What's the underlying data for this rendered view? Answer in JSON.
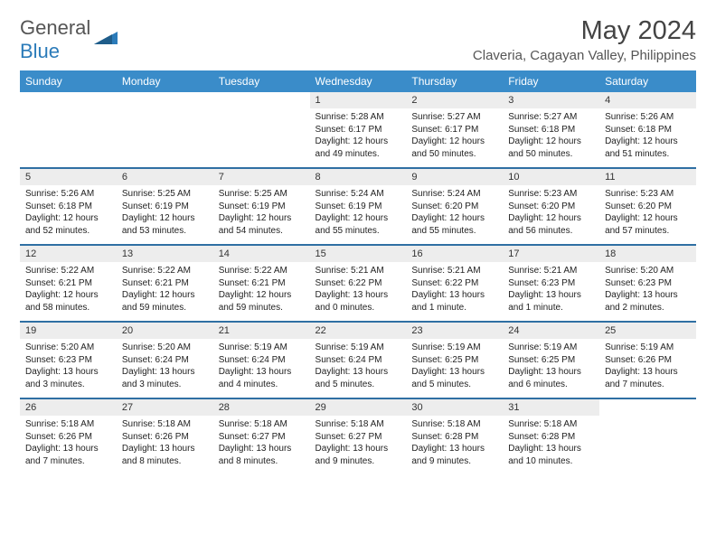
{
  "brand": {
    "part1": "General",
    "part2": "Blue"
  },
  "title": "May 2024",
  "location": "Claveria, Cagayan Valley, Philippines",
  "colors": {
    "header_bg": "#3a8cc9",
    "border": "#2f6fa3",
    "daybg": "#ededed"
  },
  "weekdays": [
    "Sunday",
    "Monday",
    "Tuesday",
    "Wednesday",
    "Thursday",
    "Friday",
    "Saturday"
  ],
  "weeks": [
    [
      null,
      null,
      null,
      {
        "n": "1",
        "sr": "Sunrise: 5:28 AM",
        "ss": "Sunset: 6:17 PM",
        "dl": "Daylight: 12 hours and 49 minutes."
      },
      {
        "n": "2",
        "sr": "Sunrise: 5:27 AM",
        "ss": "Sunset: 6:17 PM",
        "dl": "Daylight: 12 hours and 50 minutes."
      },
      {
        "n": "3",
        "sr": "Sunrise: 5:27 AM",
        "ss": "Sunset: 6:18 PM",
        "dl": "Daylight: 12 hours and 50 minutes."
      },
      {
        "n": "4",
        "sr": "Sunrise: 5:26 AM",
        "ss": "Sunset: 6:18 PM",
        "dl": "Daylight: 12 hours and 51 minutes."
      }
    ],
    [
      {
        "n": "5",
        "sr": "Sunrise: 5:26 AM",
        "ss": "Sunset: 6:18 PM",
        "dl": "Daylight: 12 hours and 52 minutes."
      },
      {
        "n": "6",
        "sr": "Sunrise: 5:25 AM",
        "ss": "Sunset: 6:19 PM",
        "dl": "Daylight: 12 hours and 53 minutes."
      },
      {
        "n": "7",
        "sr": "Sunrise: 5:25 AM",
        "ss": "Sunset: 6:19 PM",
        "dl": "Daylight: 12 hours and 54 minutes."
      },
      {
        "n": "8",
        "sr": "Sunrise: 5:24 AM",
        "ss": "Sunset: 6:19 PM",
        "dl": "Daylight: 12 hours and 55 minutes."
      },
      {
        "n": "9",
        "sr": "Sunrise: 5:24 AM",
        "ss": "Sunset: 6:20 PM",
        "dl": "Daylight: 12 hours and 55 minutes."
      },
      {
        "n": "10",
        "sr": "Sunrise: 5:23 AM",
        "ss": "Sunset: 6:20 PM",
        "dl": "Daylight: 12 hours and 56 minutes."
      },
      {
        "n": "11",
        "sr": "Sunrise: 5:23 AM",
        "ss": "Sunset: 6:20 PM",
        "dl": "Daylight: 12 hours and 57 minutes."
      }
    ],
    [
      {
        "n": "12",
        "sr": "Sunrise: 5:22 AM",
        "ss": "Sunset: 6:21 PM",
        "dl": "Daylight: 12 hours and 58 minutes."
      },
      {
        "n": "13",
        "sr": "Sunrise: 5:22 AM",
        "ss": "Sunset: 6:21 PM",
        "dl": "Daylight: 12 hours and 59 minutes."
      },
      {
        "n": "14",
        "sr": "Sunrise: 5:22 AM",
        "ss": "Sunset: 6:21 PM",
        "dl": "Daylight: 12 hours and 59 minutes."
      },
      {
        "n": "15",
        "sr": "Sunrise: 5:21 AM",
        "ss": "Sunset: 6:22 PM",
        "dl": "Daylight: 13 hours and 0 minutes."
      },
      {
        "n": "16",
        "sr": "Sunrise: 5:21 AM",
        "ss": "Sunset: 6:22 PM",
        "dl": "Daylight: 13 hours and 1 minute."
      },
      {
        "n": "17",
        "sr": "Sunrise: 5:21 AM",
        "ss": "Sunset: 6:23 PM",
        "dl": "Daylight: 13 hours and 1 minute."
      },
      {
        "n": "18",
        "sr": "Sunrise: 5:20 AM",
        "ss": "Sunset: 6:23 PM",
        "dl": "Daylight: 13 hours and 2 minutes."
      }
    ],
    [
      {
        "n": "19",
        "sr": "Sunrise: 5:20 AM",
        "ss": "Sunset: 6:23 PM",
        "dl": "Daylight: 13 hours and 3 minutes."
      },
      {
        "n": "20",
        "sr": "Sunrise: 5:20 AM",
        "ss": "Sunset: 6:24 PM",
        "dl": "Daylight: 13 hours and 3 minutes."
      },
      {
        "n": "21",
        "sr": "Sunrise: 5:19 AM",
        "ss": "Sunset: 6:24 PM",
        "dl": "Daylight: 13 hours and 4 minutes."
      },
      {
        "n": "22",
        "sr": "Sunrise: 5:19 AM",
        "ss": "Sunset: 6:24 PM",
        "dl": "Daylight: 13 hours and 5 minutes."
      },
      {
        "n": "23",
        "sr": "Sunrise: 5:19 AM",
        "ss": "Sunset: 6:25 PM",
        "dl": "Daylight: 13 hours and 5 minutes."
      },
      {
        "n": "24",
        "sr": "Sunrise: 5:19 AM",
        "ss": "Sunset: 6:25 PM",
        "dl": "Daylight: 13 hours and 6 minutes."
      },
      {
        "n": "25",
        "sr": "Sunrise: 5:19 AM",
        "ss": "Sunset: 6:26 PM",
        "dl": "Daylight: 13 hours and 7 minutes."
      }
    ],
    [
      {
        "n": "26",
        "sr": "Sunrise: 5:18 AM",
        "ss": "Sunset: 6:26 PM",
        "dl": "Daylight: 13 hours and 7 minutes."
      },
      {
        "n": "27",
        "sr": "Sunrise: 5:18 AM",
        "ss": "Sunset: 6:26 PM",
        "dl": "Daylight: 13 hours and 8 minutes."
      },
      {
        "n": "28",
        "sr": "Sunrise: 5:18 AM",
        "ss": "Sunset: 6:27 PM",
        "dl": "Daylight: 13 hours and 8 minutes."
      },
      {
        "n": "29",
        "sr": "Sunrise: 5:18 AM",
        "ss": "Sunset: 6:27 PM",
        "dl": "Daylight: 13 hours and 9 minutes."
      },
      {
        "n": "30",
        "sr": "Sunrise: 5:18 AM",
        "ss": "Sunset: 6:28 PM",
        "dl": "Daylight: 13 hours and 9 minutes."
      },
      {
        "n": "31",
        "sr": "Sunrise: 5:18 AM",
        "ss": "Sunset: 6:28 PM",
        "dl": "Daylight: 13 hours and 10 minutes."
      },
      null
    ]
  ]
}
